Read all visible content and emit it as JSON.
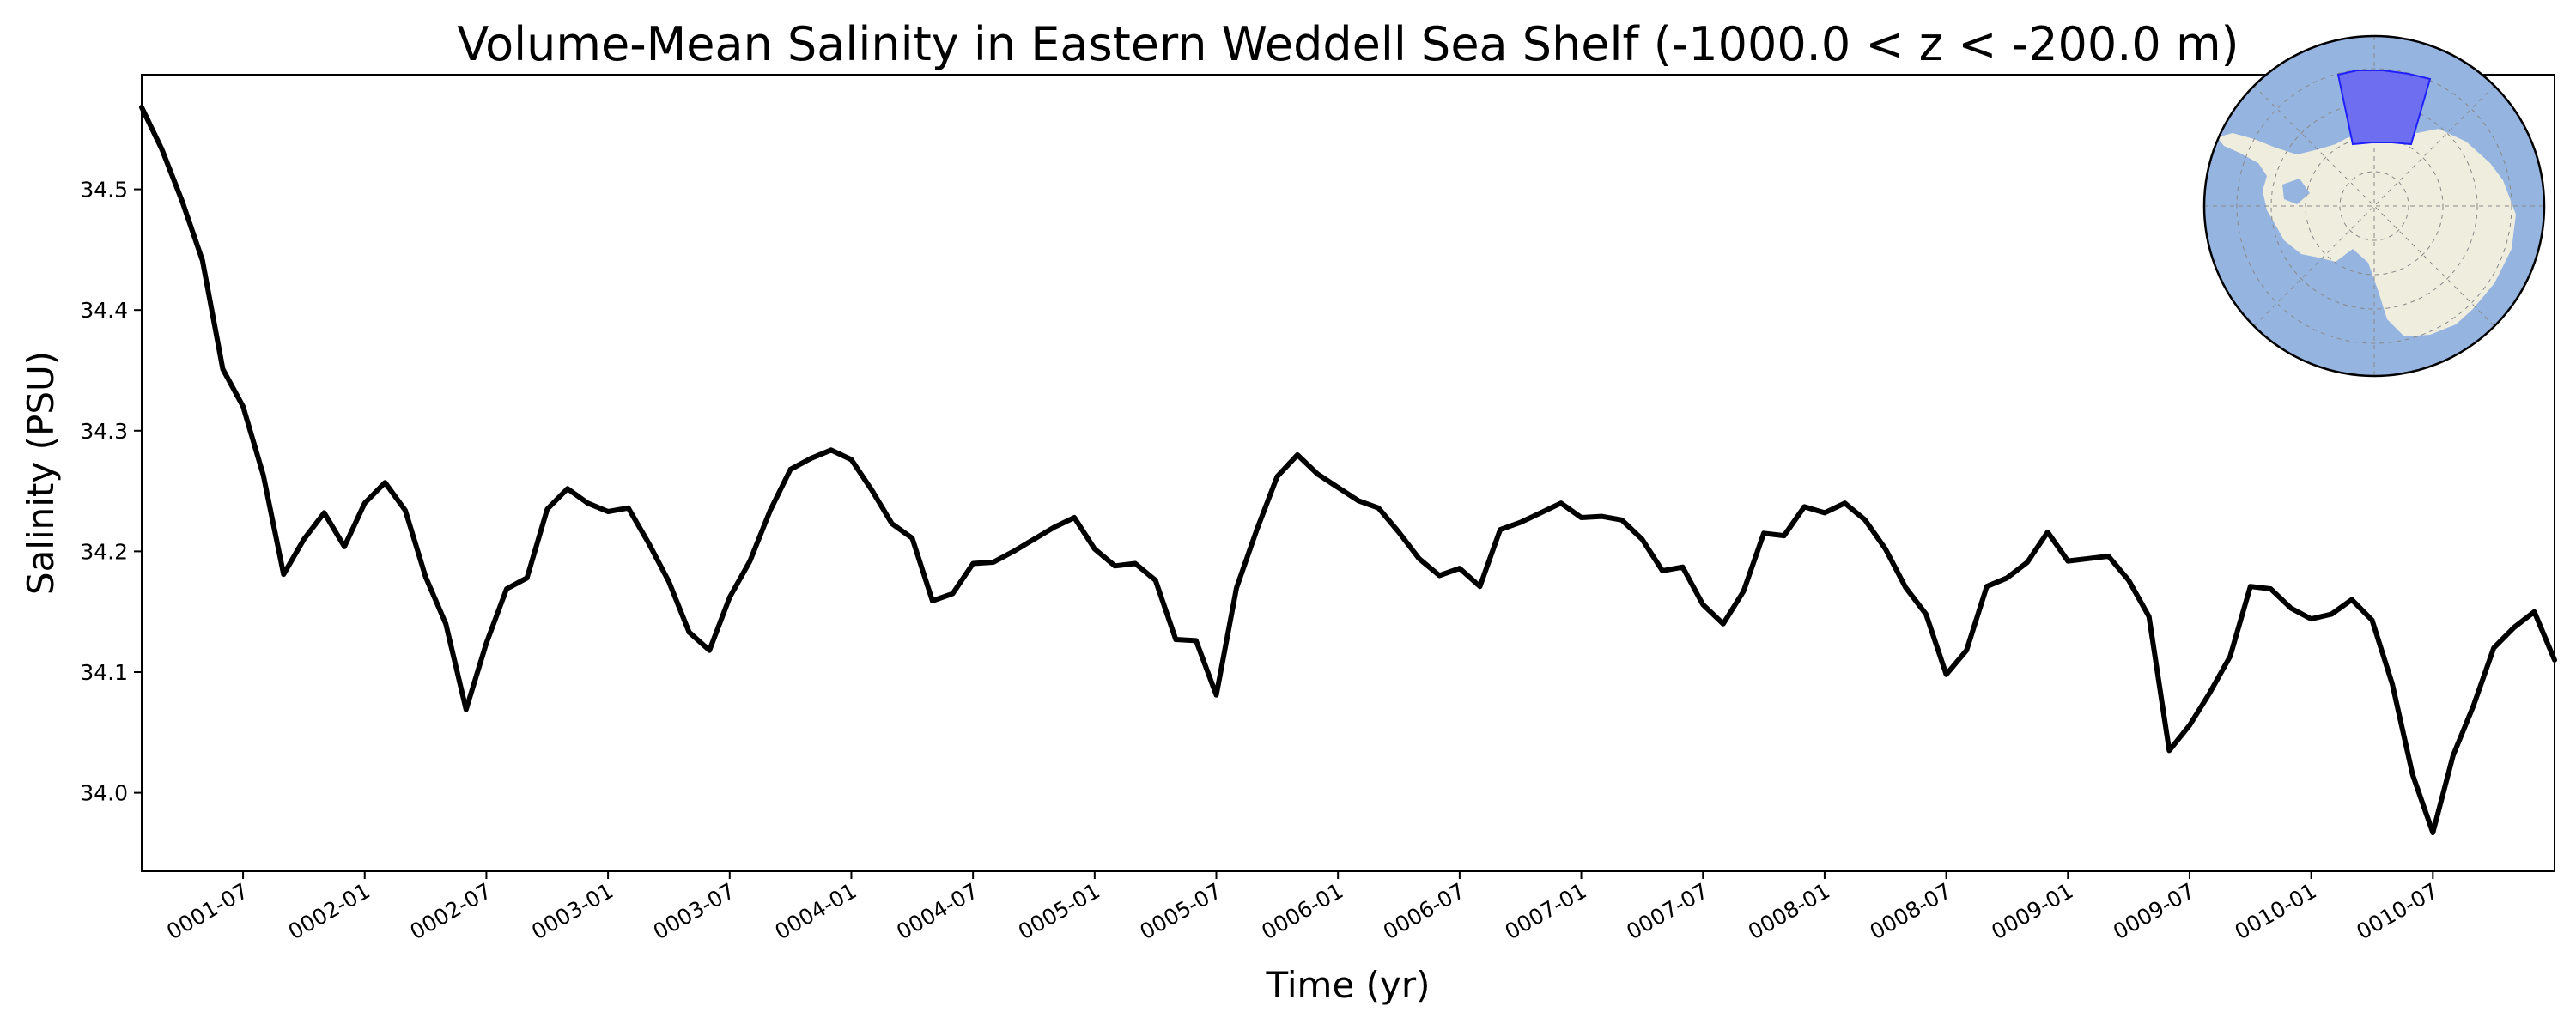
{
  "chart_data": {
    "type": "line",
    "title": "Volume-Mean Salinity in Eastern Weddell Sea Shelf (-1000.0 < z < -200.0 m)",
    "xlabel": "Time (yr)",
    "ylabel": "Salinity (PSU)",
    "xlim": [
      "0001-02",
      "0011-01"
    ],
    "ylim": [
      33.935,
      34.595
    ],
    "yticks": [
      34.0,
      34.1,
      34.2,
      34.3,
      34.4,
      34.5
    ],
    "ytick_labels": [
      "34.0",
      "34.1",
      "34.2",
      "34.3",
      "34.4",
      "34.5"
    ],
    "xticks": [
      "0001-07",
      "0002-01",
      "0002-07",
      "0003-01",
      "0003-07",
      "0004-01",
      "0004-07",
      "0005-01",
      "0005-07",
      "0006-01",
      "0006-07",
      "0007-01",
      "0007-07",
      "0008-01",
      "0008-07",
      "0009-01",
      "0009-07",
      "0010-01",
      "0010-07"
    ],
    "grid": false,
    "legend": "none",
    "series": [
      {
        "color": "#000000",
        "x": [
          "0001-02",
          "0001-03",
          "0001-04",
          "0001-05",
          "0001-06",
          "0001-07",
          "0001-08",
          "0001-09",
          "0001-10",
          "0001-11",
          "0001-12",
          "0002-01",
          "0002-02",
          "0002-03",
          "0002-04",
          "0002-05",
          "0002-06",
          "0002-07",
          "0002-08",
          "0002-09",
          "0002-10",
          "0002-11",
          "0002-12",
          "0003-01",
          "0003-02",
          "0003-03",
          "0003-04",
          "0003-05",
          "0003-06",
          "0003-07",
          "0003-08",
          "0003-09",
          "0003-10",
          "0003-11",
          "0003-12",
          "0004-01",
          "0004-02",
          "0004-03",
          "0004-04",
          "0004-05",
          "0004-06",
          "0004-07",
          "0004-08",
          "0004-09",
          "0004-10",
          "0004-11",
          "0004-12",
          "0005-01",
          "0005-02",
          "0005-03",
          "0005-04",
          "0005-05",
          "0005-06",
          "0005-07",
          "0005-08",
          "0005-09",
          "0005-10",
          "0005-11",
          "0005-12",
          "0006-01",
          "0006-02",
          "0006-03",
          "0006-04",
          "0006-05",
          "0006-06",
          "0006-07",
          "0006-08",
          "0006-09",
          "0006-10",
          "0006-11",
          "0006-12",
          "0007-01",
          "0007-02",
          "0007-03",
          "0007-04",
          "0007-05",
          "0007-06",
          "0007-07",
          "0007-08",
          "0007-09",
          "0007-10",
          "0007-11",
          "0007-12",
          "0008-01",
          "0008-02",
          "0008-03",
          "0008-04",
          "0008-05",
          "0008-06",
          "0008-07",
          "0008-08",
          "0008-09",
          "0008-10",
          "0008-11",
          "0008-12",
          "0009-01",
          "0009-02",
          "0009-03",
          "0009-04",
          "0009-05",
          "0009-06",
          "0009-07",
          "0009-08",
          "0009-09",
          "0009-10",
          "0009-11",
          "0009-12",
          "0010-01",
          "0010-02",
          "0010-03",
          "0010-04",
          "0010-05",
          "0010-06",
          "0010-07",
          "0010-08",
          "0010-09",
          "0010-10",
          "0010-11",
          "0010-12",
          "0011-01"
        ],
        "y": [
          34.568,
          34.533,
          34.49,
          34.441,
          34.351,
          34.32,
          34.263,
          34.181,
          34.21,
          34.232,
          34.204,
          34.24,
          34.257,
          34.234,
          34.179,
          34.14,
          34.069,
          34.124,
          34.169,
          34.178,
          34.235,
          34.252,
          34.24,
          34.233,
          34.236,
          34.207,
          34.175,
          34.133,
          34.118,
          34.162,
          34.192,
          34.234,
          34.268,
          34.277,
          34.284,
          34.276,
          34.251,
          34.223,
          34.211,
          34.159,
          34.165,
          34.19,
          34.191,
          34.2,
          34.21,
          34.22,
          34.228,
          34.202,
          34.188,
          34.19,
          34.176,
          34.127,
          34.126,
          34.081,
          34.17,
          34.218,
          34.262,
          34.28,
          34.264,
          34.253,
          34.242,
          34.236,
          34.216,
          34.194,
          34.18,
          34.186,
          34.171,
          34.218,
          34.224,
          34.232,
          34.24,
          34.228,
          34.229,
          34.226,
          34.21,
          34.184,
          34.187,
          34.156,
          34.14,
          34.167,
          34.215,
          34.213,
          34.237,
          34.232,
          34.24,
          34.226,
          34.202,
          34.17,
          34.148,
          34.098,
          34.118,
          34.171,
          34.178,
          34.191,
          34.216,
          34.192,
          34.194,
          34.196,
          34.176,
          34.146,
          34.035,
          34.056,
          34.083,
          34.113,
          34.171,
          34.169,
          34.153,
          34.144,
          34.148,
          34.16,
          34.143,
          34.09,
          34.015,
          33.967,
          34.031,
          34.072,
          34.12,
          34.137,
          34.15,
          34.11
        ]
      }
    ]
  },
  "inset_map": {
    "land_color": "#efedde",
    "ocean_color": "#96b4e0",
    "region_color": "#6e6ef0",
    "region_edge_color": "#2020ff"
  }
}
